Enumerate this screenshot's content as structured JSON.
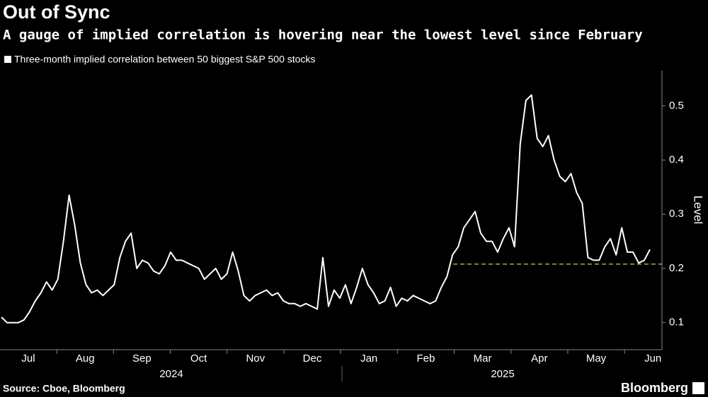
{
  "chart_data": {
    "type": "line",
    "title": "Out of Sync",
    "subtitle": "A gauge of implied correlation is hovering near the lowest level since February",
    "y_label": "Level",
    "source": "Source: Cboe, Bloomberg",
    "brand": "Bloomberg",
    "month_labels": [
      "Jul",
      "Aug",
      "Sep",
      "Oct",
      "Nov",
      "Dec",
      "Jan",
      "Feb",
      "Mar",
      "Apr",
      "May",
      "Jun"
    ],
    "year_labels": [
      "2024",
      "2025"
    ],
    "series": [
      {
        "name": "Three-month implied correlation between 50 biggest S&P 500 stocks",
        "color": "#ffffff",
        "values": [
          0.11,
          0.1,
          0.1,
          0.1,
          0.105,
          0.12,
          0.14,
          0.155,
          0.175,
          0.16,
          0.18,
          0.25,
          0.335,
          0.28,
          0.21,
          0.17,
          0.155,
          0.16,
          0.15,
          0.16,
          0.17,
          0.22,
          0.25,
          0.265,
          0.2,
          0.215,
          0.21,
          0.195,
          0.19,
          0.205,
          0.23,
          0.215,
          0.215,
          0.21,
          0.205,
          0.2,
          0.18,
          0.19,
          0.2,
          0.18,
          0.19,
          0.23,
          0.195,
          0.15,
          0.14,
          0.15,
          0.155,
          0.16,
          0.15,
          0.155,
          0.14,
          0.135,
          0.135,
          0.13,
          0.135,
          0.13,
          0.125,
          0.22,
          0.13,
          0.16,
          0.145,
          0.17,
          0.135,
          0.165,
          0.2,
          0.17,
          0.155,
          0.135,
          0.14,
          0.165,
          0.13,
          0.145,
          0.14,
          0.15,
          0.145,
          0.14,
          0.135,
          0.14,
          0.165,
          0.185,
          0.225,
          0.24,
          0.275,
          0.29,
          0.305,
          0.265,
          0.25,
          0.25,
          0.23,
          0.255,
          0.275,
          0.24,
          0.43,
          0.51,
          0.52,
          0.44,
          0.425,
          0.445,
          0.4,
          0.37,
          0.36,
          0.375,
          0.34,
          0.32,
          0.22,
          0.215,
          0.215,
          0.24,
          0.255,
          0.225,
          0.275,
          0.23,
          0.23,
          0.21,
          0.215,
          0.235
        ]
      }
    ],
    "reference_line": {
      "value": 0.208,
      "color": "#7fbf3f"
    },
    "ylim": [
      0.05,
      0.565
    ],
    "yticks": [
      0.1,
      0.2,
      0.3,
      0.4,
      0.5
    ]
  }
}
